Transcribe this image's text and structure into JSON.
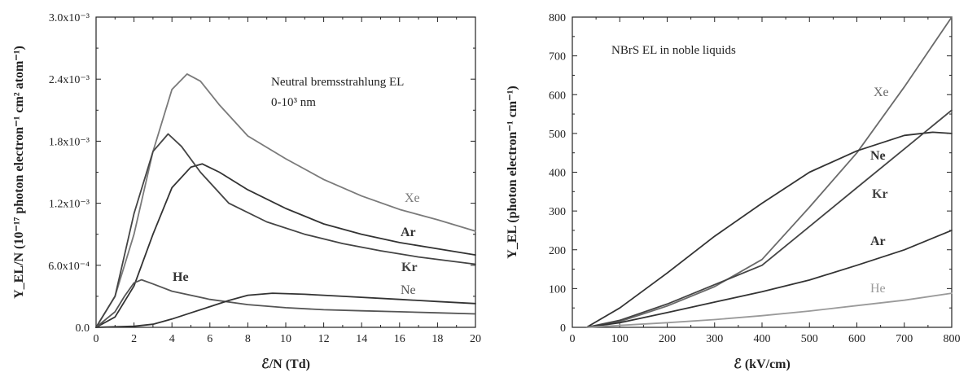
{
  "chart_data": [
    {
      "type": "line",
      "annotation": [
        "Neutral bremsstrahlung EL",
        "0-10³ nm"
      ],
      "xlabel": "ℰ/N (Td)",
      "ylabel": "Y_EL/N (10⁻¹⁷ photon electron⁻¹ cm² atom⁻¹)",
      "xlim": [
        0,
        20
      ],
      "ylim": [
        0,
        0.003
      ],
      "x_ticks": [
        "0",
        "2",
        "4",
        "6",
        "8",
        "10",
        "12",
        "14",
        "16",
        "18",
        "20"
      ],
      "y_ticks": [
        "0.0",
        "6.0x10⁻⁴",
        "1.2x10⁻³",
        "1.8x10⁻³",
        "2.4x10⁻³",
        "3.0x10⁻³"
      ],
      "grid": false,
      "series": [
        {
          "name": "Xe",
          "color": "#7a7a7a",
          "x": [
            0,
            1,
            2,
            3,
            4,
            4.8,
            5.5,
            6.5,
            8,
            10,
            12,
            14,
            16,
            18,
            20
          ],
          "y": [
            0,
            0.0003,
            0.0009,
            0.0017,
            0.0023,
            0.00245,
            0.00238,
            0.00215,
            0.00185,
            0.00163,
            0.00143,
            0.00127,
            0.00114,
            0.00104,
            0.00093
          ]
        },
        {
          "name": "Ar",
          "color": "#333333",
          "x": [
            0,
            1,
            2,
            3,
            4,
            5,
            5.6,
            6.5,
            8,
            10,
            12,
            14,
            16,
            18,
            20
          ],
          "y": [
            0,
            0.0001,
            0.0004,
            0.0009,
            0.00135,
            0.00155,
            0.00158,
            0.0015,
            0.00133,
            0.00115,
            0.001,
            0.0009,
            0.00082,
            0.00076,
            0.0007
          ]
        },
        {
          "name": "Kr",
          "color": "#444444",
          "x": [
            0,
            1,
            2,
            3,
            3.8,
            4.5,
            5.5,
            7,
            9,
            11,
            13,
            15,
            17,
            20
          ],
          "y": [
            0,
            0.0003,
            0.0011,
            0.0017,
            0.00187,
            0.00175,
            0.0015,
            0.0012,
            0.00102,
            0.0009,
            0.00081,
            0.00074,
            0.00068,
            0.00061
          ]
        },
        {
          "name": "Ne",
          "color": "#555555",
          "x": [
            0,
            1,
            1.5,
            2,
            2.4,
            3,
            4,
            6,
            8,
            10,
            12,
            14,
            16,
            18,
            20
          ],
          "y": [
            0,
            0.00015,
            0.0003,
            0.00043,
            0.00046,
            0.00042,
            0.00035,
            0.00027,
            0.00022,
            0.00019,
            0.00017,
            0.00016,
            0.00015,
            0.00014,
            0.00013
          ]
        },
        {
          "name": "He",
          "color": "#333333",
          "x": [
            0,
            2,
            3,
            4,
            5,
            6,
            7,
            8,
            9.3,
            11,
            13,
            16,
            18,
            20
          ],
          "y": [
            0,
            1e-05,
            3e-05,
            8e-05,
            0.00014,
            0.0002,
            0.00026,
            0.00031,
            0.00033,
            0.00032,
            0.0003,
            0.00027,
            0.00025,
            0.00023
          ]
        }
      ]
    },
    {
      "type": "line",
      "annotation": [
        "NBrS EL in noble liquids"
      ],
      "xlabel": "ℰ (kV/cm)",
      "ylabel": "Y_EL (photon electron⁻¹ cm⁻¹)",
      "xlim": [
        0,
        800
      ],
      "ylim": [
        0,
        800
      ],
      "x_ticks": [
        "0",
        "100",
        "200",
        "300",
        "400",
        "500",
        "600",
        "700",
        "800"
      ],
      "y_ticks": [
        "0",
        "100",
        "200",
        "300",
        "400",
        "500",
        "600",
        "700",
        "800"
      ],
      "grid": false,
      "series": [
        {
          "name": "Xe",
          "color": "#6a6a6a",
          "x": [
            30,
            100,
            200,
            300,
            400,
            500,
            600,
            700,
            800
          ],
          "y": [
            0,
            15,
            55,
            105,
            175,
            310,
            450,
            620,
            820
          ]
        },
        {
          "name": "Ne",
          "color": "#333333",
          "x": [
            30,
            100,
            200,
            300,
            400,
            500,
            600,
            700,
            760,
            800
          ],
          "y": [
            0,
            50,
            140,
            235,
            320,
            400,
            455,
            495,
            503,
            500
          ]
        },
        {
          "name": "Kr",
          "color": "#444444",
          "x": [
            30,
            100,
            200,
            300,
            400,
            500,
            600,
            700,
            800
          ],
          "y": [
            0,
            18,
            60,
            110,
            160,
            260,
            360,
            460,
            560
          ]
        },
        {
          "name": "Ar",
          "color": "#333333",
          "x": [
            30,
            100,
            200,
            300,
            400,
            500,
            600,
            700,
            800
          ],
          "y": [
            0,
            12,
            38,
            65,
            92,
            122,
            160,
            200,
            250
          ]
        },
        {
          "name": "He",
          "color": "#9a9a9a",
          "x": [
            30,
            100,
            200,
            300,
            400,
            500,
            600,
            700,
            800
          ],
          "y": [
            0,
            5,
            12,
            20,
            30,
            42,
            56,
            70,
            88
          ]
        }
      ]
    }
  ]
}
